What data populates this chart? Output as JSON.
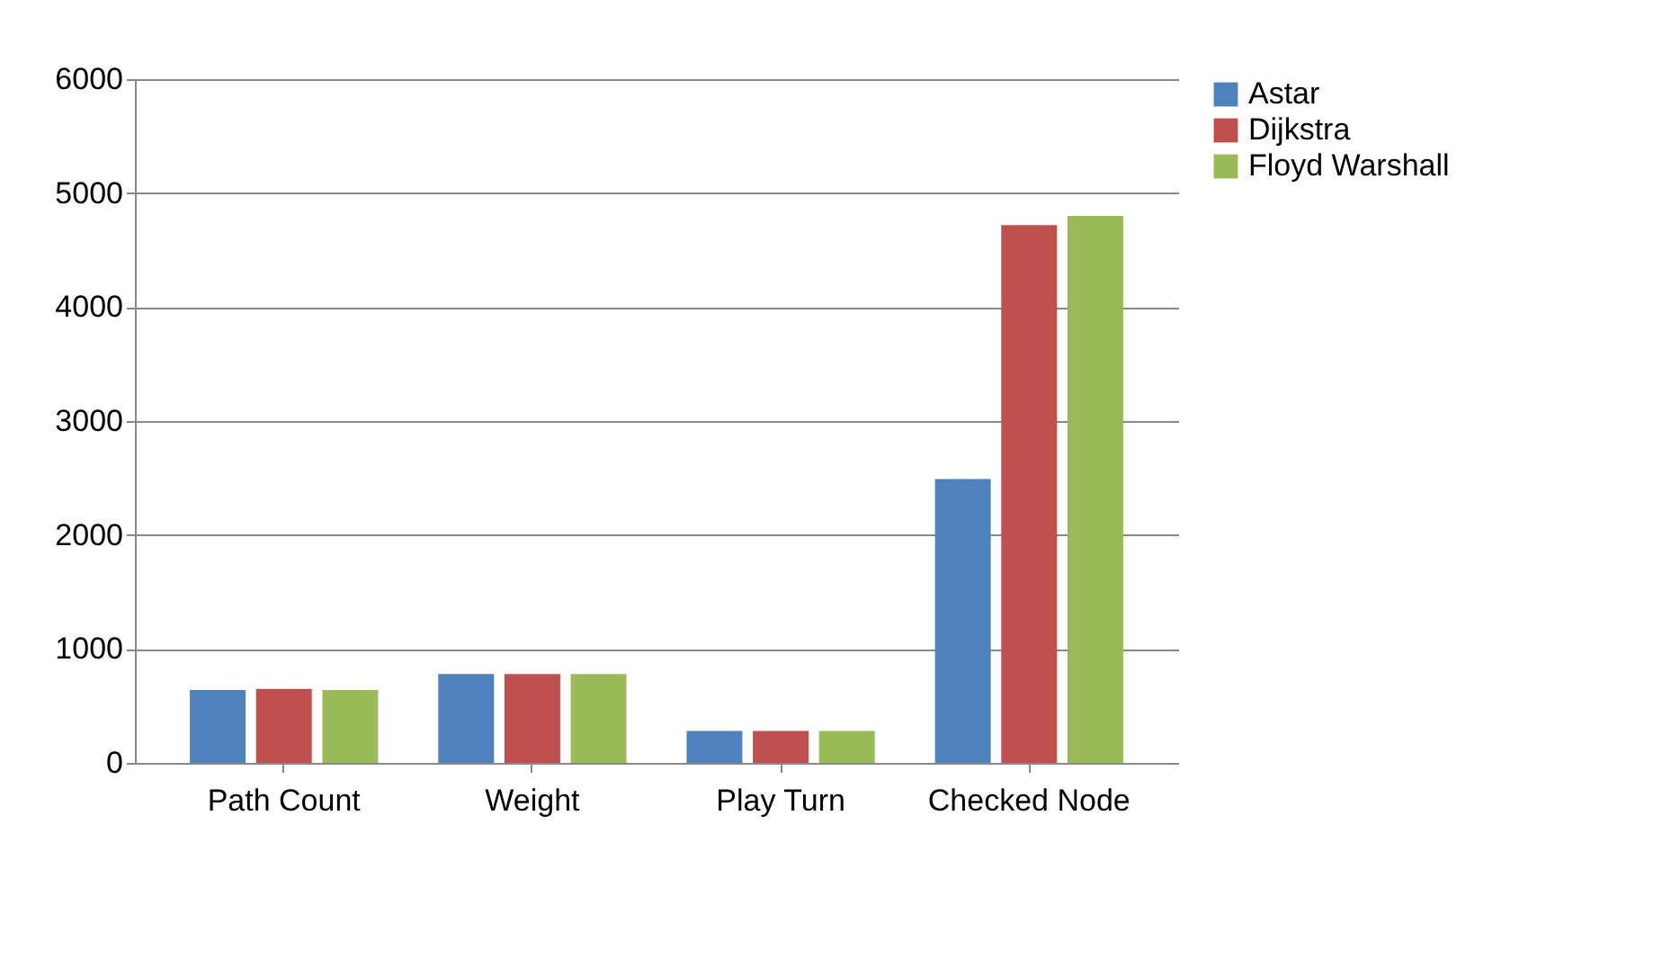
{
  "chart_data": {
    "type": "bar",
    "categories": [
      "Path Count",
      "Weight",
      "Play Turn",
      "Checked Node"
    ],
    "series": [
      {
        "name": "Astar",
        "color": "#4f81bd",
        "values": [
          640,
          780,
          280,
          2490
        ]
      },
      {
        "name": "Dijkstra",
        "color": "#c0504d",
        "values": [
          650,
          780,
          280,
          4720
        ]
      },
      {
        "name": "Floyd Warshall",
        "color": "#9bbb59",
        "values": [
          640,
          780,
          280,
          4800
        ]
      }
    ],
    "ylim": [
      0,
      6000
    ],
    "yticks": [
      0,
      1000,
      2000,
      3000,
      4000,
      5000,
      6000
    ],
    "grid": "y",
    "legend": "right"
  }
}
